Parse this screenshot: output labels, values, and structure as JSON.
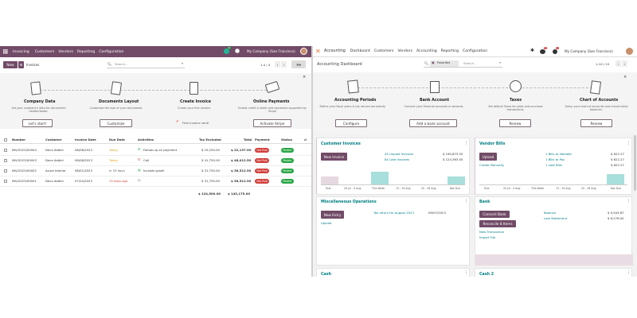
{
  "left": {
    "nav": {
      "app": "Invoicing",
      "menu": [
        "Customers",
        "Vendors",
        "Reporting",
        "Configuration"
      ],
      "company": "My Company (San Francisco)",
      "badge1": "5",
      "badge2": "1"
    },
    "ctrl": {
      "new": "New",
      "crumb": "Invoices",
      "search_placeholder": "Search...",
      "pager": "1-4 / 4"
    },
    "onboard": [
      {
        "title": "Company Data",
        "desc": "Set your company's data for documents header/footer.",
        "btn": "Let's start!"
      },
      {
        "title": "Documents Layout",
        "desc": "Customize the look of your documents.",
        "btn": "Customize"
      },
      {
        "title": "Create Invoice",
        "desc": "Create your first invoice.",
        "done": "First invoice sent!"
      },
      {
        "title": "Online Payments",
        "desc": "Enable credit & debit card payments supported by Stripe",
        "btn": "Activate Stripe"
      }
    ],
    "columns": [
      "Number",
      "Customer",
      "Invoice Date",
      "Due Date",
      "Activities",
      "Tax Excluded",
      "Total",
      "Payment",
      "Status"
    ],
    "rows": [
      {
        "number": "INV/2023/00004",
        "customer": "Deco Addict",
        "date": "08/08/2023",
        "due": "Today",
        "activity": "Follow-up on payment",
        "tax_excl": "$ 19,250.00",
        "total": "$ 22,137.50",
        "payment": "Not Paid",
        "status": "Posted"
      },
      {
        "number": "INV/2023/00003",
        "customer": "Deco Addict",
        "date": "08/08/2023",
        "due": "Today",
        "activity": "Call",
        "tax_excl": "$ 41,750.00",
        "total": "$ 48,012.50",
        "payment": "Not Paid",
        "status": "Posted"
      },
      {
        "number": "INV/2023/00002",
        "customer": "Azure Interior",
        "date": "08/01/2023",
        "due": "In 33 days",
        "activity": "Include upsell",
        "tax_excl": "$ 31,750.00",
        "total": "$ 36,512.50",
        "payment": "Not Paid",
        "status": "Posted"
      },
      {
        "number": "INV/2023/00001",
        "customer": "Deco Addict",
        "date": "07/24/2023",
        "due": "15 days ago",
        "activity": "",
        "tax_excl": "$ 31,750.00",
        "total": "$ 36,512.50",
        "payment": "Not Paid",
        "status": "Posted"
      }
    ],
    "totals": {
      "tax_excl": "$ 124,500.00",
      "total": "$ 143,175.00"
    }
  },
  "right": {
    "nav": {
      "app": "Accounting",
      "menu": [
        "Dashboard",
        "Customers",
        "Vendors",
        "Accounting",
        "Reporting",
        "Configuration"
      ],
      "company": "My Company (San Francisco)",
      "badge1": "5",
      "badge2": "1"
    },
    "ctrl": {
      "title": "Accounting Dashboard",
      "filter": "Favorites",
      "search_placeholder": "Search...",
      "pager": "1-10 / 10"
    },
    "onboard": [
      {
        "title": "Accounting Periods",
        "desc": "Define your fiscal years & tax returns periodicity.",
        "btn": "Configure"
      },
      {
        "title": "Bank Account",
        "desc": "Connect your financial accounts in seconds.",
        "btn": "Add a bank account"
      },
      {
        "title": "Taxes",
        "desc": "Set default Taxes for sales and purchase transactions.",
        "btn": "Review"
      },
      {
        "title": "Chart of Accounts",
        "desc": "Setup your chart of accounts and record initial balances.",
        "btn": "Review"
      }
    ],
    "customer_invoices": {
      "title": "Customer Invoices",
      "btn": "New Invoice",
      "stats": [
        {
          "label": "45 Unpaid Invoices",
          "value": "$ 190,873.50"
        },
        {
          "label": "84 Late Invoices",
          "value": "$ 124,363.00"
        }
      ],
      "chart_labels": [
        "Due",
        "20 Jul - 5 Aug",
        "This Week",
        "13 - 19 Aug",
        "20 - 26 Aug",
        "Not Due"
      ]
    },
    "vendor_bills": {
      "title": "Vendor Bills",
      "btn": "Upload",
      "link": "Create Manually",
      "stats": [
        {
          "label": "1 Bills to Validate",
          "value": "$ 622.27"
        },
        {
          "label": "1 Bills to Pay",
          "value": "$ 622.27"
        },
        {
          "label": "1 Late Bills",
          "value": "$ 622.27"
        }
      ],
      "chart_labels": [
        "Due",
        "20 Jul - 5 Aug",
        "This Week",
        "13 - 19 Aug",
        "20 - 26 Aug",
        "Not Due"
      ]
    },
    "misc": {
      "title": "Miscellaneous Operations",
      "btn": "New Entry",
      "link": "Upload",
      "tax": "Tax return for August 2023",
      "date": "09/07/2023"
    },
    "bank": {
      "title": "Bank",
      "btn1": "Connect Bank",
      "btn2": "Reconcile 8 Items",
      "link1": "New Transaction",
      "link2": "Import File",
      "stats": [
        {
          "label": "Balance",
          "value": "$ 9,944.87"
        },
        {
          "label": "Last Statement",
          "value": "$ 6,276.00"
        }
      ]
    },
    "cash": {
      "title": "Cash"
    },
    "cash2": {
      "title": "Cash 2"
    }
  }
}
